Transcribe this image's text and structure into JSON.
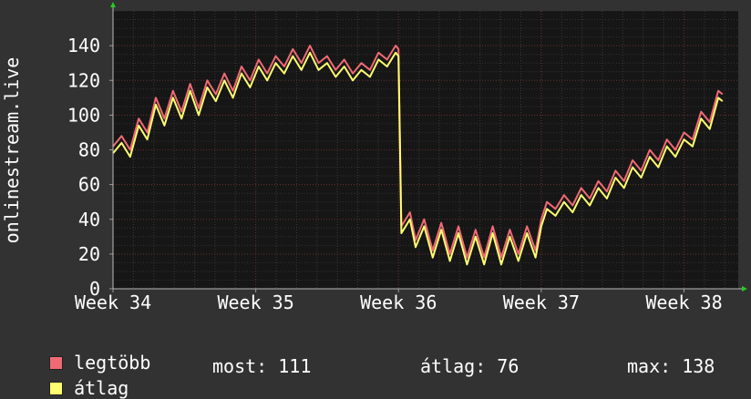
{
  "chart_data": {
    "type": "line",
    "ylabel": "onlinestream.live",
    "ylim": [
      0,
      160
    ],
    "yticks": [
      0,
      20,
      40,
      60,
      80,
      100,
      120,
      140
    ],
    "xlim": [
      0,
      4.38
    ],
    "xticks": [
      {
        "label": "Week 34",
        "x": 0
      },
      {
        "label": "Week 35",
        "x": 1
      },
      {
        "label": "Week 36",
        "x": 2
      },
      {
        "label": "Week 37",
        "x": 3
      },
      {
        "label": "Week 38",
        "x": 4
      }
    ],
    "grid": true,
    "series": [
      {
        "name": "legtöbb",
        "color": "#f06a74",
        "points": [
          [
            0.0,
            82
          ],
          [
            0.06,
            88
          ],
          [
            0.12,
            80
          ],
          [
            0.18,
            98
          ],
          [
            0.24,
            90
          ],
          [
            0.3,
            110
          ],
          [
            0.36,
            98
          ],
          [
            0.42,
            114
          ],
          [
            0.48,
            102
          ],
          [
            0.54,
            118
          ],
          [
            0.6,
            104
          ],
          [
            0.66,
            120
          ],
          [
            0.72,
            112
          ],
          [
            0.78,
            124
          ],
          [
            0.84,
            114
          ],
          [
            0.9,
            128
          ],
          [
            0.96,
            120
          ],
          [
            1.02,
            132
          ],
          [
            1.08,
            124
          ],
          [
            1.14,
            134
          ],
          [
            1.2,
            128
          ],
          [
            1.26,
            138
          ],
          [
            1.32,
            130
          ],
          [
            1.38,
            140
          ],
          [
            1.44,
            130
          ],
          [
            1.5,
            134
          ],
          [
            1.56,
            126
          ],
          [
            1.62,
            132
          ],
          [
            1.68,
            124
          ],
          [
            1.74,
            130
          ],
          [
            1.8,
            126
          ],
          [
            1.86,
            136
          ],
          [
            1.92,
            132
          ],
          [
            1.98,
            140
          ],
          [
            2.0,
            138
          ],
          [
            2.02,
            36
          ],
          [
            2.08,
            44
          ],
          [
            2.12,
            28
          ],
          [
            2.18,
            40
          ],
          [
            2.24,
            22
          ],
          [
            2.3,
            38
          ],
          [
            2.36,
            20
          ],
          [
            2.42,
            36
          ],
          [
            2.48,
            18
          ],
          [
            2.54,
            34
          ],
          [
            2.6,
            18
          ],
          [
            2.66,
            36
          ],
          [
            2.72,
            18
          ],
          [
            2.78,
            34
          ],
          [
            2.84,
            20
          ],
          [
            2.9,
            36
          ],
          [
            2.96,
            22
          ],
          [
            3.0,
            40
          ],
          [
            3.04,
            50
          ],
          [
            3.1,
            46
          ],
          [
            3.16,
            54
          ],
          [
            3.22,
            48
          ],
          [
            3.28,
            58
          ],
          [
            3.34,
            52
          ],
          [
            3.4,
            62
          ],
          [
            3.46,
            56
          ],
          [
            3.52,
            68
          ],
          [
            3.58,
            62
          ],
          [
            3.64,
            74
          ],
          [
            3.7,
            68
          ],
          [
            3.76,
            80
          ],
          [
            3.82,
            74
          ],
          [
            3.88,
            86
          ],
          [
            3.94,
            80
          ],
          [
            4.0,
            90
          ],
          [
            4.06,
            86
          ],
          [
            4.12,
            102
          ],
          [
            4.18,
            96
          ],
          [
            4.24,
            114
          ],
          [
            4.27,
            112
          ]
        ]
      },
      {
        "name": "átlag",
        "color": "#ffff70",
        "points": [
          [
            0.0,
            78
          ],
          [
            0.06,
            84
          ],
          [
            0.12,
            76
          ],
          [
            0.18,
            94
          ],
          [
            0.24,
            86
          ],
          [
            0.3,
            106
          ],
          [
            0.36,
            94
          ],
          [
            0.42,
            110
          ],
          [
            0.48,
            98
          ],
          [
            0.54,
            114
          ],
          [
            0.6,
            100
          ],
          [
            0.66,
            116
          ],
          [
            0.72,
            108
          ],
          [
            0.78,
            120
          ],
          [
            0.84,
            110
          ],
          [
            0.9,
            124
          ],
          [
            0.96,
            116
          ],
          [
            1.02,
            128
          ],
          [
            1.08,
            120
          ],
          [
            1.14,
            130
          ],
          [
            1.2,
            124
          ],
          [
            1.26,
            134
          ],
          [
            1.32,
            126
          ],
          [
            1.38,
            136
          ],
          [
            1.44,
            126
          ],
          [
            1.5,
            130
          ],
          [
            1.56,
            122
          ],
          [
            1.62,
            128
          ],
          [
            1.68,
            120
          ],
          [
            1.74,
            126
          ],
          [
            1.8,
            122
          ],
          [
            1.86,
            132
          ],
          [
            1.92,
            128
          ],
          [
            1.98,
            136
          ],
          [
            2.0,
            134
          ],
          [
            2.02,
            32
          ],
          [
            2.08,
            40
          ],
          [
            2.12,
            24
          ],
          [
            2.18,
            36
          ],
          [
            2.24,
            18
          ],
          [
            2.3,
            34
          ],
          [
            2.36,
            16
          ],
          [
            2.42,
            32
          ],
          [
            2.48,
            14
          ],
          [
            2.54,
            30
          ],
          [
            2.6,
            14
          ],
          [
            2.66,
            32
          ],
          [
            2.72,
            14
          ],
          [
            2.78,
            30
          ],
          [
            2.84,
            16
          ],
          [
            2.9,
            32
          ],
          [
            2.96,
            18
          ],
          [
            3.0,
            36
          ],
          [
            3.04,
            46
          ],
          [
            3.1,
            42
          ],
          [
            3.16,
            50
          ],
          [
            3.22,
            44
          ],
          [
            3.28,
            54
          ],
          [
            3.34,
            48
          ],
          [
            3.4,
            58
          ],
          [
            3.46,
            52
          ],
          [
            3.52,
            64
          ],
          [
            3.58,
            58
          ],
          [
            3.64,
            70
          ],
          [
            3.7,
            64
          ],
          [
            3.76,
            76
          ],
          [
            3.82,
            70
          ],
          [
            3.88,
            82
          ],
          [
            3.94,
            76
          ],
          [
            4.0,
            86
          ],
          [
            4.06,
            82
          ],
          [
            4.12,
            98
          ],
          [
            4.18,
            92
          ],
          [
            4.24,
            110
          ],
          [
            4.27,
            108
          ]
        ]
      }
    ]
  },
  "legend": [
    {
      "label": "legtöbb",
      "color": "#f06a74"
    },
    {
      "label": "átlag",
      "color": "#ffff70"
    }
  ],
  "stats": {
    "current": "most: 111",
    "average": "átlag: 76",
    "max": "max: 138"
  }
}
